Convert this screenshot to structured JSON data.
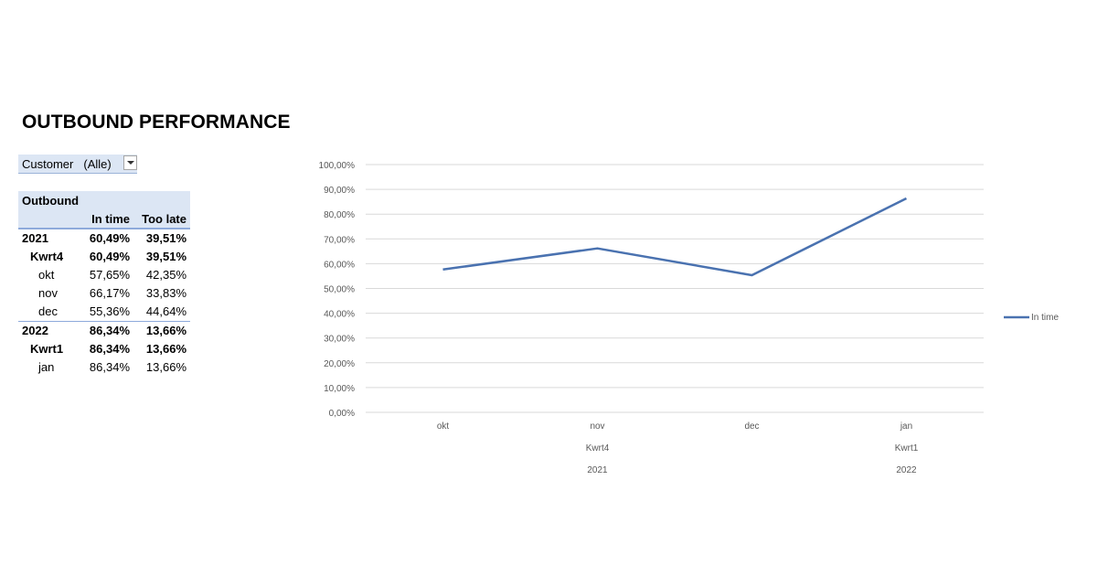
{
  "title": "OUTBOUND PERFORMANCE",
  "filter": {
    "label": "Customer",
    "value": "(Alle)"
  },
  "pivot": {
    "header": "Outbound",
    "col_in_time": "In time",
    "col_too_late": "Too late",
    "rows": [
      {
        "label": "2021",
        "in_time": "60,49%",
        "too_late": "39,51%",
        "level": 0
      },
      {
        "label": "Kwrt4",
        "in_time": "60,49%",
        "too_late": "39,51%",
        "level": 1
      },
      {
        "label": "okt",
        "in_time": "57,65%",
        "too_late": "42,35%",
        "level": 2
      },
      {
        "label": "nov",
        "in_time": "66,17%",
        "too_late": "33,83%",
        "level": 2
      },
      {
        "label": "dec",
        "in_time": "55,36%",
        "too_late": "44,64%",
        "level": 2
      },
      {
        "label": "2022",
        "in_time": "86,34%",
        "too_late": "13,66%",
        "level": 0
      },
      {
        "label": "Kwrt1",
        "in_time": "86,34%",
        "too_late": "13,66%",
        "level": 1
      },
      {
        "label": "jan",
        "in_time": "86,34%",
        "too_late": "13,66%",
        "level": 2
      }
    ]
  },
  "chart_data": {
    "type": "line",
    "categories": [
      "okt",
      "nov",
      "dec",
      "jan"
    ],
    "quarters": [
      "Kwrt4",
      "Kwrt1"
    ],
    "years": [
      "2021",
      "2022"
    ],
    "series": [
      {
        "name": "In time",
        "values": [
          57.65,
          66.17,
          55.36,
          86.34
        ],
        "color": "#4a72b0"
      }
    ],
    "ylim": [
      0,
      100
    ],
    "yticks": [
      "0,00%",
      "10,00%",
      "20,00%",
      "30,00%",
      "40,00%",
      "50,00%",
      "60,00%",
      "70,00%",
      "80,00%",
      "90,00%",
      "100,00%"
    ],
    "grid": true,
    "legend": "right"
  }
}
